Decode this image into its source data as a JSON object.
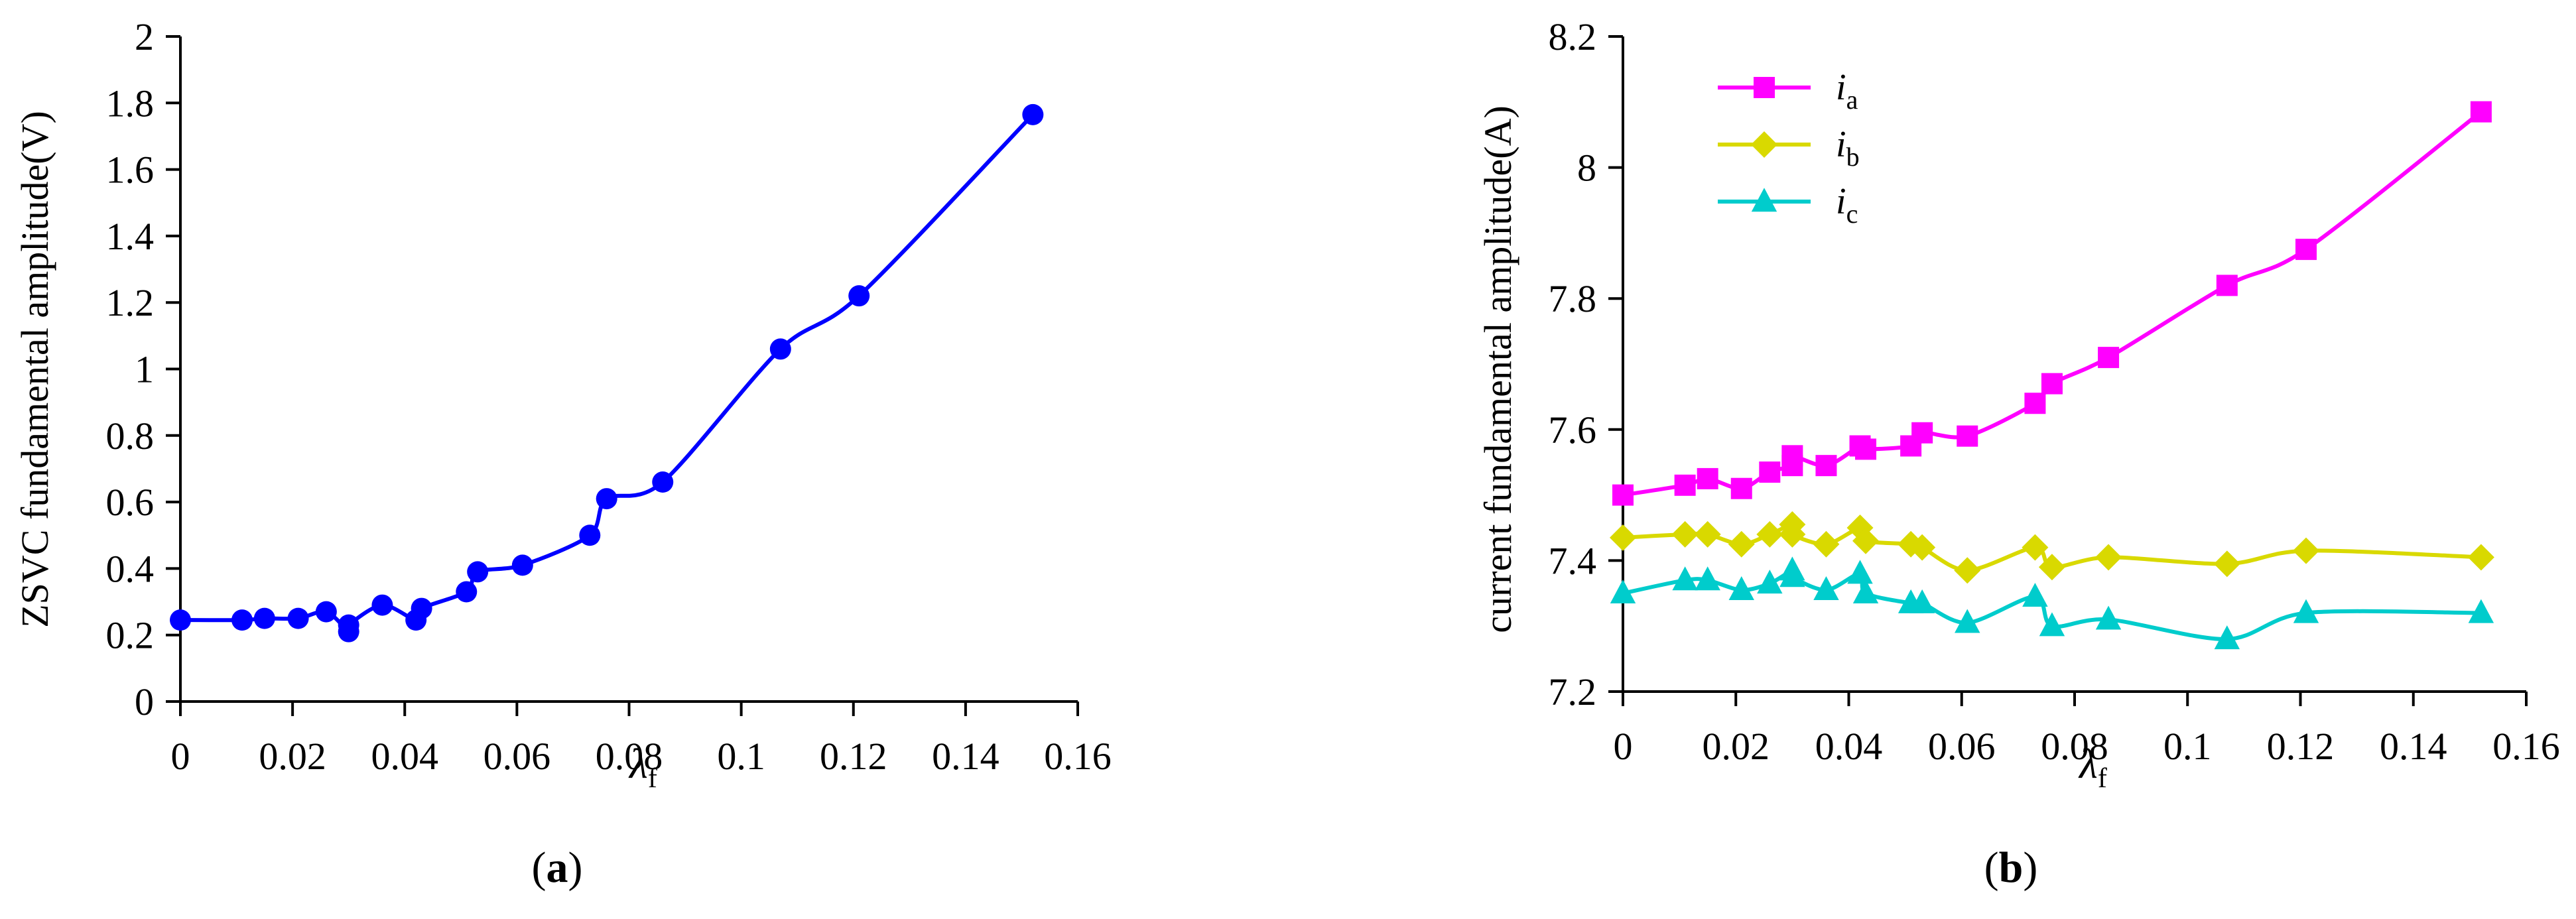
{
  "chart_data": [
    {
      "type": "line",
      "caption_letter": "a",
      "caption_open": "(",
      "caption_close": ")",
      "ylabel": "ZSVC fundamental amplitude(V)",
      "xlabel_main": "λ",
      "xlabel_sub": "f",
      "xlim": [
        0,
        0.16
      ],
      "ylim": [
        0,
        2
      ],
      "xticks": [
        "0",
        "0.02",
        "0.04",
        "0.06",
        "0.08",
        "0.1",
        "0.12",
        "0.14",
        "0.16"
      ],
      "yticks": [
        "0",
        "0.2",
        "0.4",
        "0.6",
        "0.8",
        "1",
        "1.2",
        "1.4",
        "1.6",
        "1.8",
        "2"
      ],
      "grid": false,
      "series": [
        {
          "color": "#0000ff",
          "marker": "circle",
          "x": [
            0,
            0.011,
            0.015,
            0.021,
            0.026,
            0.03,
            0.03,
            0.036,
            0.042,
            0.043,
            0.051,
            0.053,
            0.061,
            0.073,
            0.076,
            0.086,
            0.107,
            0.121,
            0.152
          ],
          "y": [
            0.245,
            0.245,
            0.25,
            0.25,
            0.27,
            0.21,
            0.23,
            0.29,
            0.245,
            0.28,
            0.33,
            0.39,
            0.41,
            0.5,
            0.61,
            0.66,
            1.06,
            1.22,
            1.765
          ]
        }
      ]
    },
    {
      "type": "line",
      "caption_letter": "b",
      "caption_open": "(",
      "caption_close": ")",
      "ylabel": "current fundamental amplitude(A)",
      "xlabel_main": "λ",
      "xlabel_sub": "f",
      "xlim": [
        0,
        0.16
      ],
      "ylim": [
        7.2,
        8.2
      ],
      "xticks": [
        "0",
        "0.02",
        "0.04",
        "0.06",
        "0.08",
        "0.1",
        "0.12",
        "0.14",
        "0.16"
      ],
      "yticks": [
        "7.2",
        "7.4",
        "7.6",
        "7.8",
        "8",
        "8.2"
      ],
      "grid": false,
      "legend_position": "top-left",
      "series": [
        {
          "name_main": "i",
          "name_sub": "a",
          "color": "#ff00ff",
          "marker": "square",
          "x": [
            0,
            0.011,
            0.015,
            0.021,
            0.026,
            0.03,
            0.03,
            0.036,
            0.042,
            0.043,
            0.051,
            0.053,
            0.061,
            0.073,
            0.076,
            0.086,
            0.107,
            0.121,
            0.152
          ],
          "y": [
            7.5,
            7.515,
            7.525,
            7.51,
            7.535,
            7.545,
            7.56,
            7.545,
            7.575,
            7.57,
            7.575,
            7.595,
            7.59,
            7.64,
            7.67,
            7.71,
            7.82,
            7.875,
            8.085
          ]
        },
        {
          "name_main": "i",
          "name_sub": "b",
          "color": "#d9d900",
          "marker": "diamond",
          "x": [
            0,
            0.011,
            0.015,
            0.021,
            0.026,
            0.03,
            0.03,
            0.036,
            0.042,
            0.043,
            0.051,
            0.053,
            0.061,
            0.073,
            0.076,
            0.086,
            0.107,
            0.121,
            0.152
          ],
          "y": [
            7.435,
            7.44,
            7.44,
            7.425,
            7.44,
            7.455,
            7.44,
            7.425,
            7.45,
            7.43,
            7.425,
            7.42,
            7.385,
            7.42,
            7.39,
            7.405,
            7.395,
            7.415,
            7.405
          ]
        },
        {
          "name_main": "i",
          "name_sub": "c",
          "color": "#00cccc",
          "marker": "triangle",
          "x": [
            0,
            0.011,
            0.015,
            0.021,
            0.026,
            0.03,
            0.03,
            0.036,
            0.042,
            0.043,
            0.051,
            0.053,
            0.061,
            0.073,
            0.076,
            0.086,
            0.107,
            0.121,
            0.152
          ],
          "y": [
            7.35,
            7.37,
            7.37,
            7.355,
            7.365,
            7.385,
            7.375,
            7.355,
            7.38,
            7.35,
            7.335,
            7.335,
            7.305,
            7.345,
            7.3,
            7.31,
            7.28,
            7.32,
            7.32
          ]
        }
      ]
    }
  ]
}
